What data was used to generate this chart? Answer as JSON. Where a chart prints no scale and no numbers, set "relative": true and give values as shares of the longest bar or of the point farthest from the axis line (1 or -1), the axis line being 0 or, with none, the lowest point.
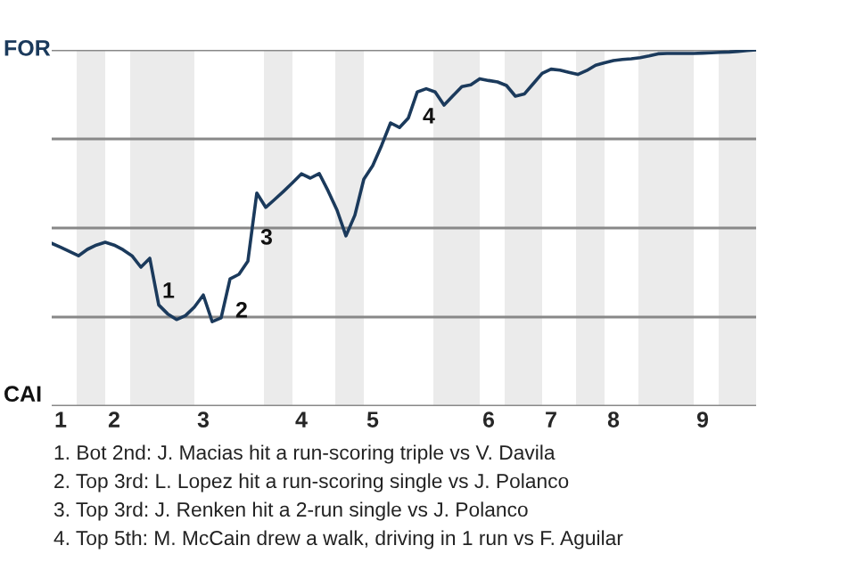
{
  "chart_data": {
    "type": "line",
    "relative": true,
    "categories": [
      null,
      "1",
      null,
      null,
      null,
      null,
      null,
      "2",
      null,
      null,
      null,
      null,
      null,
      null,
      null,
      null,
      null,
      "3",
      null,
      null,
      null,
      null,
      null,
      null,
      null,
      null,
      null,
      null,
      "4",
      null,
      null,
      null,
      null,
      null,
      null,
      null,
      "5",
      null,
      null,
      null,
      null,
      null,
      null,
      null,
      null,
      null,
      null,
      null,
      null,
      "6",
      null,
      null,
      null,
      null,
      null,
      null,
      "7",
      null,
      null,
      null,
      null,
      null,
      null,
      "8",
      null,
      null,
      null,
      null,
      null,
      null,
      null,
      null,
      null,
      "9",
      null,
      null,
      null,
      null,
      null,
      null
    ],
    "series": [
      {
        "color": "#1b3a5c",
        "values": [
          0.457,
          0.446,
          0.434,
          0.422,
          0.44,
          0.452,
          0.46,
          0.452,
          0.439,
          0.422,
          0.39,
          0.415,
          0.284,
          0.259,
          0.243,
          0.254,
          0.278,
          0.312,
          0.237,
          0.248,
          0.357,
          0.37,
          0.407,
          0.598,
          0.558,
          0.58,
          0.603,
          0.627,
          0.652,
          0.64,
          0.653,
          0.604,
          0.55,
          0.478,
          0.536,
          0.637,
          0.675,
          0.732,
          0.795,
          0.782,
          0.809,
          0.882,
          0.891,
          0.882,
          0.845,
          0.871,
          0.897,
          0.902,
          0.919,
          0.914,
          0.91,
          0.9,
          0.87,
          0.876,
          0.905,
          0.934,
          0.946,
          0.943,
          0.937,
          0.931,
          0.942,
          0.957,
          0.964,
          0.97,
          0.973,
          0.975,
          0.978,
          0.983,
          0.989,
          0.99,
          0.99,
          0.99,
          0.99,
          0.991,
          0.992,
          0.993,
          0.994,
          0.996,
          0.998,
          1.0
        ]
      }
    ],
    "grid": "y",
    "annotations": [
      "FOR",
      "CAI",
      "1",
      "2",
      "3",
      "4",
      "1. Bot 2nd: J. Macias hit a run-scoring triple vs V. Davila",
      "2. Top 3rd: L. Lopez hit a run-scoring single vs J. Polanco",
      "3. Top 3rd: J. Renken hit a 2-run single vs J. Polanco",
      "4. Top 5th: M. McCain drew a walk, driving in 1 run vs F. Aguilar"
    ]
  }
}
